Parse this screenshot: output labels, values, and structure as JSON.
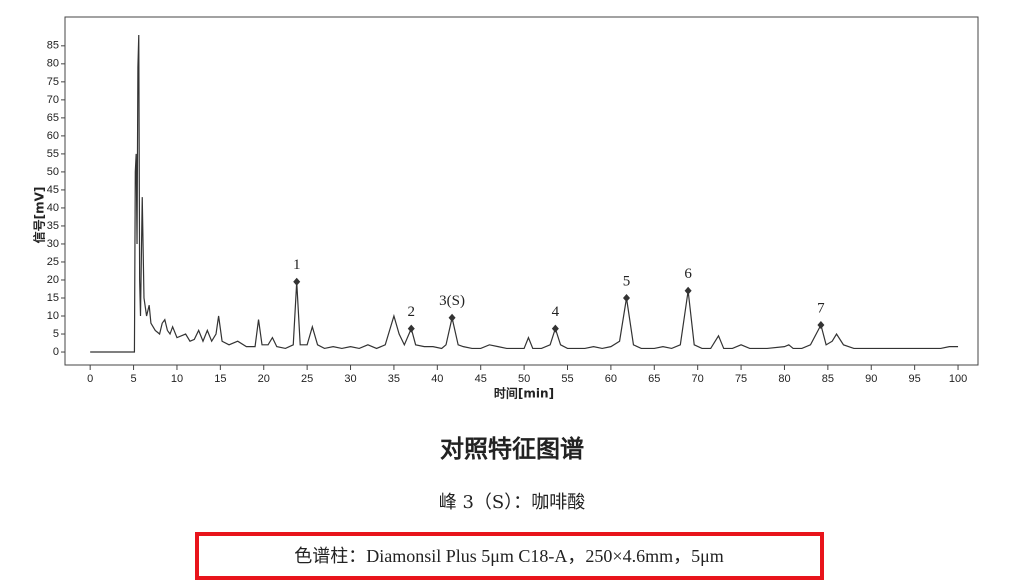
{
  "chart_data": {
    "type": "line",
    "xlabel": "时间[min]",
    "ylabel": "信号[mV]",
    "x": [
      0,
      5,
      5.1,
      5.2,
      5.3,
      5.4,
      5.5,
      5.6,
      5.7,
      5.8,
      6.0,
      6.2,
      6.5,
      6.8,
      7.0,
      7.5,
      8.0,
      8.3,
      8.6,
      8.9,
      9.2,
      9.5,
      10,
      11,
      11.5,
      12,
      12.5,
      13,
      13.5,
      14,
      14.5,
      14.8,
      15.2,
      16,
      17,
      18,
      19,
      19.4,
      19.8,
      20.5,
      21,
      21.5,
      22.5,
      23.4,
      23.8,
      24.2,
      25,
      25.6,
      26.2,
      27,
      28,
      29,
      30,
      31,
      32,
      33,
      34,
      35,
      35.6,
      36.2,
      37,
      37.5,
      38.5,
      39.5,
      40.5,
      41,
      41.7,
      42.4,
      43,
      44,
      45,
      46,
      47,
      48,
      49,
      50,
      50.5,
      51,
      52,
      53,
      53.6,
      54.2,
      55,
      56,
      57,
      58,
      59,
      60,
      61,
      61.8,
      62.6,
      63.5,
      65,
      66,
      67,
      68,
      68.9,
      69.6,
      70.5,
      71.5,
      72.4,
      73,
      74,
      75,
      76,
      78,
      80,
      80.5,
      81,
      82,
      83,
      84.2,
      84.8,
      85.5,
      86,
      86.8,
      88,
      90,
      92,
      95,
      98,
      99,
      100
    ],
    "series": [
      {
        "color": "#333333",
        "values": [
          0,
          0,
          0,
          50,
          55,
          30,
          79,
          88,
          20,
          10,
          43,
          15,
          10,
          13,
          8,
          6,
          5,
          8,
          9,
          6,
          5,
          7,
          4,
          5,
          3,
          3.5,
          6,
          3,
          6,
          3,
          5,
          10,
          3,
          2,
          3,
          1.5,
          1.5,
          9,
          2,
          2,
          4,
          1.5,
          1,
          2,
          19.5,
          2,
          2,
          7,
          2,
          1,
          1.5,
          1,
          1.5,
          1,
          2,
          1,
          2,
          10,
          5,
          2,
          6.5,
          2,
          1.5,
          1.5,
          1,
          2,
          9.5,
          2,
          1.5,
          1,
          1,
          2,
          1.5,
          1,
          1,
          1,
          4,
          1,
          1,
          2,
          6.5,
          2,
          1,
          1,
          1,
          1.5,
          1,
          1.5,
          3,
          15,
          2,
          1,
          1,
          1.5,
          1,
          2,
          17,
          2,
          1,
          1,
          4.5,
          1,
          1,
          2,
          1,
          1,
          1.5,
          2,
          1,
          1,
          2,
          7.5,
          2,
          3,
          5,
          2,
          1,
          1,
          1,
          1,
          1,
          1.5,
          1.5
        ]
      }
    ],
    "peaks": [
      {
        "label": "1",
        "x": 23.8,
        "y": 19.5
      },
      {
        "label": "2",
        "x": 37,
        "y": 6.5
      },
      {
        "label": "3(S)",
        "x": 41.7,
        "y": 9.5
      },
      {
        "label": "4",
        "x": 53.6,
        "y": 6.5
      },
      {
        "label": "5",
        "x": 61.8,
        "y": 15
      },
      {
        "label": "6",
        "x": 68.9,
        "y": 17
      },
      {
        "label": "7",
        "x": 84.2,
        "y": 7.5
      }
    ],
    "xlim": [
      -2.9,
      102.3
    ],
    "ylim": [
      -3.6,
      93
    ],
    "xticks": [
      0,
      5,
      10,
      15,
      20,
      25,
      30,
      35,
      40,
      45,
      50,
      55,
      60,
      65,
      70,
      75,
      80,
      85,
      90,
      95,
      100
    ],
    "yticks": [
      0,
      5,
      10,
      15,
      20,
      25,
      30,
      35,
      40,
      45,
      50,
      55,
      60,
      65,
      70,
      75,
      80,
      85
    ]
  },
  "caption": {
    "title": "对照特征图谱",
    "peak_note": "峰 3（S）：咖啡酸",
    "column": "色谱柱：Diamonsil Plus 5μm C18-A，250×4.6mm，5μm"
  }
}
